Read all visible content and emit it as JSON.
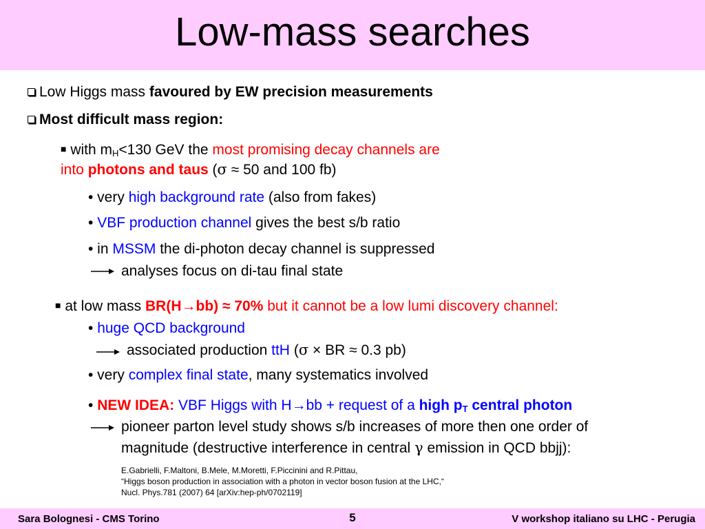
{
  "title": "Low-mass searches",
  "bullets": {
    "b1_normal": "Low Higgs mass ",
    "b1_bold": "favoured by EW precision measurements",
    "b2_bold": "Most difficult mass region:",
    "s1_a": "with m",
    "s1_sub": "H",
    "s1_b": "<130 GeV the ",
    "s1_red": "most promising decay channels are",
    "s1_l2_red": "into ",
    "s1_l2_redbold": "photons and taus",
    "s1_l2_rest_a": " (",
    "s1_l2_sigma": "σ",
    "s1_l2_rest_b": " ≈ 50 and 100 fb)",
    "d1_a": "• very ",
    "d1_blue": "high background rate",
    "d1_b": " (also from fakes)",
    "d2_a": "• ",
    "d2_blue": "VBF production channel",
    "d2_b": " gives the best s/b ratio",
    "d3_a": "• in ",
    "d3_blue": "MSSM",
    "d3_b": " the di-photon decay channel is suppressed",
    "d3_arrow_text": "analyses focus on di-tau final state",
    "s2_a": "at low mass ",
    "s2_redbold": "BR(H→bb) ≈ 70%",
    "s2_red": " but it cannot be a low lumi discovery channel:",
    "e1_a": "• ",
    "e1_blue": "huge QCD background",
    "e1_arrow_a": "associated production ",
    "e1_arrow_blue": "ttH",
    "e1_arrow_b": " (",
    "e1_arrow_sigma": "σ",
    "e1_arrow_c": " × BR ≈ 0.3 pb)",
    "e2_a": "• very ",
    "e2_blue": "complex final state",
    "e2_b": ", many systematics involved",
    "e3_a": "• ",
    "e3_redbold": "NEW IDEA:",
    "e3_blue": " VBF Higgs with H→bb + request of a ",
    "e3_bluebold": "high p",
    "e3_bluebold_sub": "T",
    "e3_bluebold_b": " central photon",
    "e3_arrow_l1": "pioneer parton level study shows s/b increases of more then one order of",
    "e3_arrow_l2_a": "magnitude (destructive interference in central ",
    "e3_arrow_l2_gamma": "γ",
    "e3_arrow_l2_b": " emission in QCD bbjj):"
  },
  "reference": {
    "line1": "E.Gabrielli, F.Maltoni, B.Mele, M.Moretti, F.Piccinini and R.Pittau,",
    "line2": "“Higgs boson production in association with a photon in vector boson fusion at the LHC,“",
    "line3": "Nucl. Phys.781 (2007) 64 [arXiv:hep-ph/0702119]"
  },
  "footer": {
    "left": "Sara Bolognesi - CMS Torino",
    "page": "5",
    "right": "V workshop italiano su LHC - Perugia"
  },
  "icons": {
    "checkbox": "checkbox-bullet-icon",
    "square": "square-bullet-icon",
    "arrow": "right-arrow-icon"
  },
  "colors": {
    "band": "#ffccff",
    "red": "#ff0000",
    "blue": "#0000ff"
  }
}
